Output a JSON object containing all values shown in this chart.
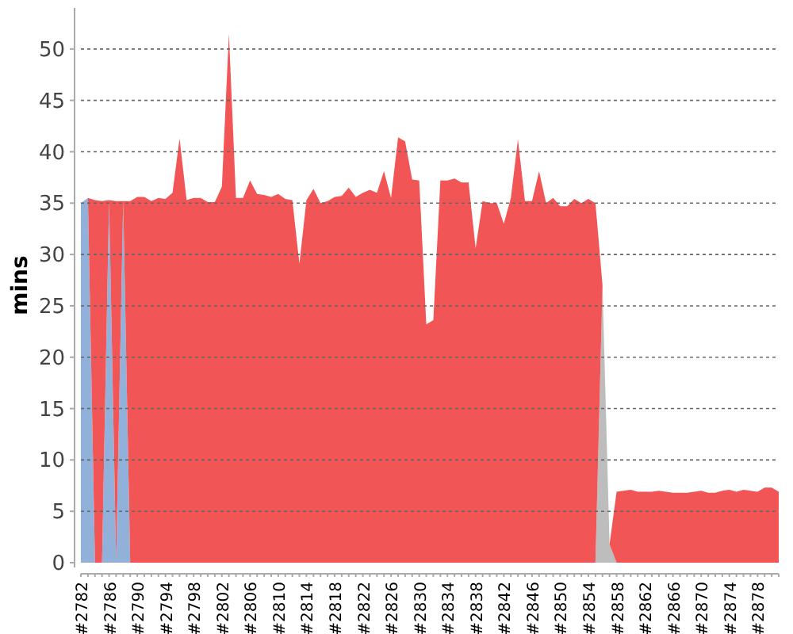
{
  "chart_data": {
    "type": "area",
    "ylabel": "mins",
    "stacked": true,
    "grid": "y",
    "ylim": [
      0,
      54
    ],
    "yticks": [
      0,
      5,
      10,
      15,
      20,
      25,
      30,
      35,
      40,
      45,
      50
    ],
    "categories": [
      "#2782",
      null,
      null,
      null,
      "#2786",
      null,
      null,
      null,
      "#2790",
      null,
      null,
      null,
      "#2794",
      null,
      null,
      null,
      "#2798",
      null,
      null,
      null,
      "#2802",
      null,
      null,
      null,
      "#2806",
      null,
      null,
      null,
      "#2810",
      null,
      null,
      null,
      "#2814",
      null,
      null,
      null,
      "#2818",
      null,
      null,
      null,
      "#2822",
      null,
      null,
      null,
      "#2826",
      null,
      null,
      null,
      "#2830",
      null,
      null,
      null,
      "#2834",
      null,
      null,
      null,
      "#2838",
      null,
      null,
      null,
      "#2842",
      null,
      null,
      null,
      "#2846",
      null,
      null,
      null,
      "#2850",
      null,
      null,
      null,
      "#2854",
      null,
      null,
      null,
      "#2858",
      null,
      null,
      null,
      "#2862",
      null,
      null,
      null,
      "#2866",
      null,
      null,
      null,
      "#2870",
      null,
      null,
      null,
      "#2874",
      null,
      null,
      null,
      "#2878",
      null,
      null,
      null
    ],
    "series": [
      {
        "color": "#bdbdbd",
        "values": [
          0,
          0,
          0,
          0,
          0,
          0,
          0,
          0,
          0,
          0,
          0,
          0,
          0,
          0,
          0,
          0,
          0,
          0,
          0,
          0,
          0,
          0,
          0,
          0,
          0,
          0,
          0,
          0,
          0,
          0,
          0,
          0,
          0,
          0,
          0,
          0,
          0,
          0,
          0,
          0,
          0,
          0,
          0,
          0,
          0,
          0,
          0,
          0,
          0,
          0,
          0,
          0,
          0,
          0,
          0,
          0,
          0,
          0,
          0,
          0,
          0,
          0,
          0,
          0,
          0,
          0,
          0,
          0,
          0,
          0,
          0,
          0,
          0,
          0,
          27,
          1.8,
          0,
          0,
          0,
          0,
          0,
          0,
          0,
          0,
          0,
          0,
          0,
          0,
          0,
          0,
          0,
          0,
          0,
          0,
          0,
          0,
          0,
          0,
          0,
          0
        ]
      },
      {
        "color": "#92b1da",
        "values": [
          35,
          35.5,
          0,
          0,
          35.3,
          0,
          35.2,
          0,
          0,
          0,
          0,
          0,
          0,
          0,
          0,
          0,
          0,
          0,
          0,
          0,
          0,
          0,
          0,
          0,
          0,
          0,
          0,
          0,
          0,
          0,
          0,
          0,
          0,
          0,
          0,
          0,
          0,
          0,
          0,
          0,
          0,
          0,
          0,
          0,
          0,
          0,
          0,
          0,
          0,
          0,
          0,
          0,
          0,
          0,
          0,
          0,
          0,
          0,
          0,
          0,
          0,
          0,
          0,
          0,
          0,
          0,
          0,
          0,
          0,
          0,
          0,
          0,
          0,
          0,
          0,
          0,
          0,
          0,
          0,
          0,
          0,
          0,
          0,
          0,
          0,
          0,
          0,
          0,
          0,
          0,
          0,
          0,
          0,
          0,
          0,
          0,
          0,
          0,
          0,
          0
        ]
      },
      {
        "color": "#f25555",
        "values": [
          0,
          0,
          35.3,
          35.2,
          0,
          35.2,
          0,
          35.2,
          35.6,
          35.6,
          35.2,
          35.5,
          35.4,
          36,
          41.3,
          35.3,
          35.5,
          35.5,
          35.1,
          35.1,
          36.6,
          51.5,
          35.5,
          35.5,
          37.2,
          35.9,
          35.8,
          35.6,
          35.9,
          35.4,
          35.3,
          29.1,
          35.3,
          36.4,
          35,
          35.2,
          35.6,
          35.7,
          36.5,
          35.6,
          36,
          36.3,
          36,
          38.1,
          35.5,
          41.4,
          41,
          37.3,
          37.2,
          23.2,
          23.6,
          37.2,
          37.2,
          37.4,
          37,
          37,
          30.6,
          35.2,
          35,
          35,
          33,
          35.5,
          41.2,
          35.2,
          35.2,
          38.1,
          35,
          35.5,
          34.7,
          34.7,
          35.4,
          35,
          35.4,
          35,
          0,
          0,
          6.9,
          7,
          7.1,
          6.9,
          6.9,
          6.9,
          7,
          6.9,
          6.8,
          6.8,
          6.8,
          6.9,
          7,
          6.8,
          6.8,
          7,
          7.1,
          6.9,
          7.1,
          7,
          6.9,
          7.3,
          7.3,
          6.9
        ]
      }
    ]
  }
}
